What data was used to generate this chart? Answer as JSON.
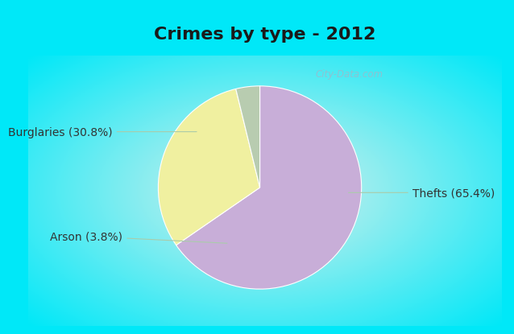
{
  "title": "Crimes by type - 2012",
  "slices": [
    {
      "label": "Thefts (65.4%)",
      "value": 65.4,
      "color": "#c8aed8"
    },
    {
      "label": "Burglaries (30.8%)",
      "value": 30.8,
      "color": "#f0f0a0"
    },
    {
      "label": "Arson (3.8%)",
      "value": 3.8,
      "color": "#b8ccb0"
    }
  ],
  "background_border": "#00e8f8",
  "title_bg": "#00e8f8",
  "title_text": "Crimes by type - 2012",
  "title_fontsize": 16,
  "label_fontsize": 10,
  "watermark": "City-Data.com",
  "start_angle": 90,
  "label_color": "#333333",
  "line_color": "#aaccaa"
}
